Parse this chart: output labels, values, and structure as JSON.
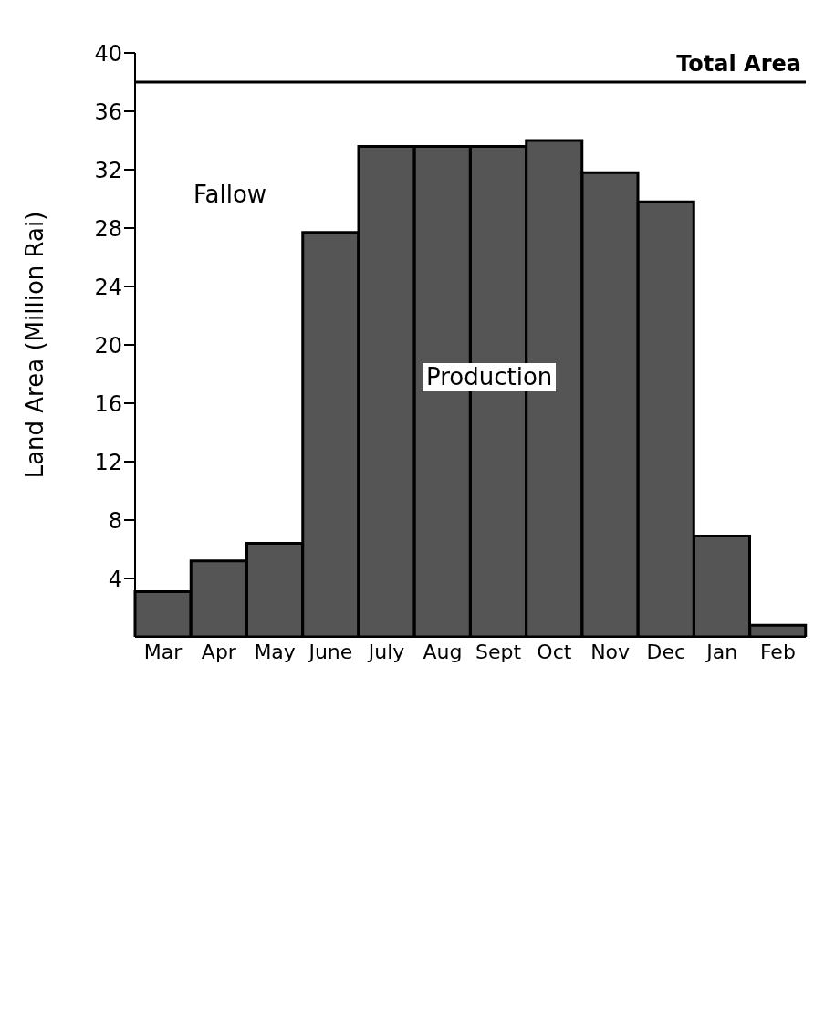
{
  "chart_data": {
    "type": "bar",
    "ylabel": "Land Area (Million Rai)",
    "categories": [
      "Mar",
      "Apr",
      "May",
      "June",
      "July",
      "Aug",
      "Sept",
      "Oct",
      "Nov",
      "Dec",
      "Jan",
      "Feb"
    ],
    "values": [
      3.1,
      5.2,
      6.4,
      27.7,
      33.6,
      33.6,
      33.6,
      34.0,
      31.8,
      29.8,
      6.9,
      0.8
    ],
    "color": "#555555",
    "ylim": [
      0,
      40
    ],
    "yticks": [
      4,
      8,
      12,
      16,
      20,
      24,
      28,
      32,
      36,
      40
    ],
    "ref_lines": [
      {
        "axis": "y",
        "value": 38,
        "label": "Total Area"
      }
    ],
    "annotations": [
      "Fallow",
      "Production"
    ],
    "grid": false,
    "legend": false
  }
}
